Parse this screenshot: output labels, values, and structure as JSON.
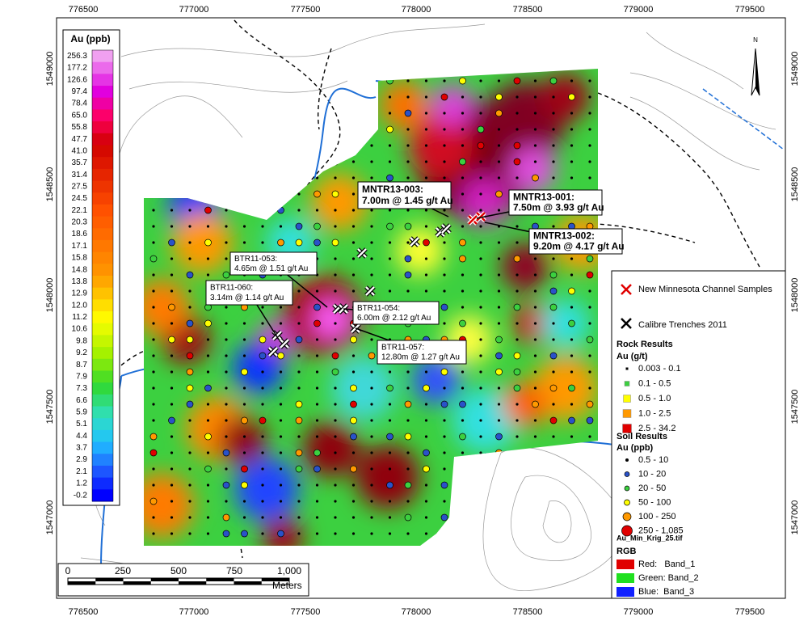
{
  "frame": {
    "x_labels": [
      "776500",
      "777000",
      "777500",
      "778000",
      "778500",
      "779000",
      "779500"
    ],
    "y_labels": [
      "1549000",
      "1548500",
      "1548000",
      "1547500",
      "1547000"
    ]
  },
  "north": "N",
  "colorbar": {
    "title": "Au (ppb)",
    "labels": [
      "256.3",
      "177.2",
      "126.6",
      "97.4",
      "78.4",
      "65.0",
      "55.8",
      "47.7",
      "41.0",
      "35.7",
      "31.4",
      "27.5",
      "24.5",
      "22.1",
      "20.3",
      "18.6",
      "17.1",
      "15.8",
      "14.8",
      "13.8",
      "12.9",
      "12.0",
      "11.2",
      "10.6",
      "9.8",
      "9.2",
      "8.7",
      "7.9",
      "7.3",
      "6.6",
      "5.9",
      "5.1",
      "4.4",
      "3.7",
      "2.9",
      "2.1",
      "1.2",
      "-0.2"
    ]
  },
  "callouts": [
    {
      "lines": [
        "MNTR13-003:",
        "7.00m @ 1.45 g/t Au"
      ],
      "bold": true
    },
    {
      "lines": [
        "MNTR13-001:",
        "7.50m @ 3.93 g/t Au"
      ],
      "bold": true
    },
    {
      "lines": [
        "MNTR13-002:",
        "9.20m @ 4.17 g/t Au"
      ],
      "bold": true
    },
    {
      "lines": [
        "BTR11-053:",
        "4.65m @ 1.51 g/t Au"
      ],
      "bold": false
    },
    {
      "lines": [
        "BTR11-060:",
        "3.14m @ 1.14 g/t Au"
      ],
      "bold": false
    },
    {
      "lines": [
        "BTR11-054:",
        "6.00m @ 2.12 g/t Au"
      ],
      "bold": false
    },
    {
      "lines": [
        "BTR11-057:",
        "12.80m @ 1.27 g/t Au"
      ],
      "bold": false
    }
  ],
  "legend": {
    "channel": "New Minnesota Channel Samples",
    "trenches": "Calibre Trenches 2011",
    "rock_title": "Rock Results",
    "rock_unit": "Au (g/t)",
    "rock_items": [
      "0.003 - 0.1",
      "0.1 - 0.5",
      "0.5 - 1.0",
      "1.0 - 2.5",
      "2.5 - 34.2"
    ],
    "soil_title": "Soil Results",
    "soil_unit": "Au (ppb)",
    "soil_items": [
      "0.5 - 10",
      "10 - 20",
      "20 - 50",
      "50 - 100",
      "100 - 250",
      "250 - 1,085"
    ],
    "raster": "Au_Min_Krig_25.tif",
    "rgb": "RGB",
    "bands": [
      "Red:   Band_1",
      "Green: Band_2",
      "Blue:  Band_3"
    ]
  },
  "scalebar": {
    "labels": [
      "0",
      "250",
      "500",
      "750",
      "1,000"
    ],
    "unit": "Meters"
  }
}
